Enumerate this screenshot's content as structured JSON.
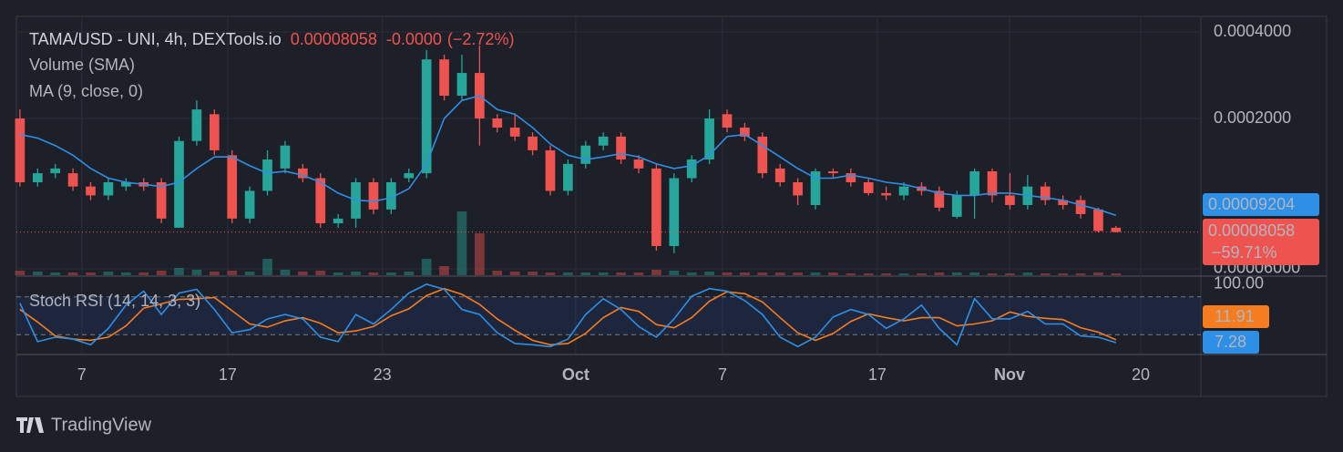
{
  "chart_data": {
    "type": "candlestick",
    "title": "TAMA/USD - UNI, 4h, DEXTools.io",
    "price_text": "0.00008058",
    "change_text": "-0.0000",
    "change_pct_text": "(−2.72%)",
    "indicators": [
      "Volume (SMA)",
      "MA (9, close, 0)"
    ],
    "log_scale": true,
    "grid": true,
    "up_color": "#26a69a",
    "down_color": "#ef5350",
    "ma_color": "#2e8fe6",
    "xlim": [
      -0.2,
      66.8
    ],
    "xticks": [
      {
        "value": 3.5,
        "label": "7"
      },
      {
        "value": 11.75,
        "label": "17"
      },
      {
        "value": 20.5,
        "label": "23"
      },
      {
        "value": 31.44,
        "label": "Oct"
      },
      {
        "value": 39.74,
        "label": "7"
      },
      {
        "value": 48.5,
        "label": "17"
      },
      {
        "value": 55.98,
        "label": "Nov"
      },
      {
        "value": 63.4,
        "label": "20"
      }
    ],
    "ylim": [
      5.7e-05,
      0.000453
    ],
    "yticks": [
      {
        "value": 0.0004,
        "label": "0.0004000"
      },
      {
        "value": 0.0002,
        "label": "0.0002000"
      },
      {
        "value": 6e-05,
        "label": "0.00006000"
      }
    ],
    "open": [
      0.0002,
      0.00012,
      0.000129,
      0.000129,
      0.000116,
      0.000108,
      0.000116,
      0.00012,
      0.00012,
      8.34e-05,
      0.000167,
      0.000207,
      0.000149,
      8.97e-05,
      0.000112,
      0.000134,
      0.000134,
      0.000124,
      8.64e-05,
      8.97e-05,
      0.00012,
      9.65e-05,
      0.000124,
      0.000129,
      0.000321,
      0.00024,
      0.000288,
      0.0002,
      0.000186,
      0.000173,
      0.000155,
      0.000112,
      0.000139,
      0.000161,
      0.000173,
      0.000144,
      0.000134,
      7.2e-05,
      0.000124,
      0.000144,
      0.000207,
      0.000186,
      0.000173,
      0.000134,
      0.00012,
      0.0001,
      0.000131,
      0.000129,
      0.00012,
      0.00011,
      0.000108,
      0.000116,
      0.000112,
      9.1e-05,
      0.000108,
      0.000131,
      0.000108,
      0.0001,
      0.000116,
      0.000104,
      0.000104,
      9.65e-05,
      8.34e-05
    ],
    "high": [
      0.000215,
      0.000134,
      0.000139,
      0.000134,
      0.00012,
      0.000124,
      0.000124,
      0.000124,
      0.000124,
      0.000173,
      0.000231,
      0.000215,
      0.000155,
      0.000116,
      0.000155,
      0.000167,
      0.000139,
      0.000129,
      9.3e-05,
      0.000124,
      0.000124,
      0.000124,
      0.000134,
      0.000346,
      0.000333,
      0.000333,
      0.000359,
      0.000207,
      0.000207,
      0.000179,
      0.000161,
      0.000144,
      0.000167,
      0.000179,
      0.000179,
      0.000149,
      0.000139,
      0.000129,
      0.000149,
      0.000215,
      0.000215,
      0.000193,
      0.000179,
      0.000139,
      0.000124,
      0.000134,
      0.000134,
      0.000134,
      0.000124,
      0.000116,
      0.00012,
      0.00012,
      0.000116,
      0.000112,
      0.000134,
      0.000134,
      0.000129,
      0.000127,
      0.00012,
      0.000108,
      0.000108,
      9.79e-05,
      8.46e-05
    ],
    "low": [
      0.000116,
      0.000116,
      0.000124,
      0.000112,
      0.000104,
      0.000104,
      0.000112,
      0.000112,
      8.64e-05,
      8.34e-05,
      0.000161,
      0.000149,
      8.64e-05,
      8.64e-05,
      0.000108,
      0.000129,
      0.00012,
      8.34e-05,
      8.34e-05,
      8.34e-05,
      9.3e-05,
      9.3e-05,
      0.00012,
      0.000124,
      0.000231,
      0.000231,
      0.000161,
      0.000179,
      0.000167,
      0.000149,
      0.000108,
      0.000108,
      0.000134,
      0.000155,
      0.000139,
      0.000129,
      6.94e-05,
      6.8e-05,
      0.00012,
      0.000139,
      0.000179,
      0.000167,
      0.000124,
      0.000116,
      0.0001,
      9.65e-05,
      0.000124,
      0.000116,
      0.000108,
      0.000104,
      0.000104,
      0.000108,
      9.51e-05,
      8.97e-05,
      8.97e-05,
      0.000102,
      9.65e-05,
      9.65e-05,
      0.0001,
      9.65e-05,
      8.97e-05,
      8.03e-05,
      8.03e-05
    ],
    "close": [
      0.00012,
      0.000129,
      0.000134,
      0.000116,
      0.000108,
      0.00012,
      0.00012,
      0.000116,
      8.97e-05,
      0.000167,
      0.000215,
      0.000155,
      8.97e-05,
      0.000112,
      0.000144,
      0.000161,
      0.000124,
      8.64e-05,
      8.97e-05,
      0.00012,
      9.65e-05,
      0.00012,
      0.000129,
      0.000321,
      0.00024,
      0.000288,
      0.0002,
      0.000186,
      0.000173,
      0.000155,
      0.000112,
      0.000139,
      0.000161,
      0.000173,
      0.000144,
      0.000134,
      7.2e-05,
      0.000124,
      0.000144,
      0.0002,
      0.000186,
      0.000173,
      0.000129,
      0.00012,
      0.000108,
      0.000131,
      0.000129,
      0.00012,
      0.00011,
      0.000108,
      0.000116,
      0.000112,
      9.79e-05,
      0.000108,
      0.000131,
      0.000108,
      0.0001,
      0.000116,
      0.000104,
      0.0001,
      9.3e-05,
      8.12e-05,
      8.058e-05
    ],
    "volume": [
      5,
      4,
      3,
      3,
      3,
      4,
      3,
      3,
      5,
      8,
      6,
      4,
      5,
      4,
      18,
      6,
      4,
      5,
      3,
      4,
      3,
      3,
      4,
      18,
      10,
      70,
      46,
      5,
      4,
      4,
      3,
      3,
      3,
      3,
      3,
      3,
      6,
      5,
      3,
      4,
      3,
      3,
      3,
      3,
      3,
      3,
      3,
      2,
      2,
      2,
      2,
      2,
      3,
      3,
      3,
      2,
      2,
      3,
      2,
      2,
      2,
      3,
      2
    ],
    "ma": [
      0.000176,
      0.000171,
      0.000161,
      0.000149,
      0.000134,
      0.000124,
      0.00012,
      0.000118,
      0.000116,
      0.00012,
      0.000134,
      0.000147,
      0.000147,
      0.000137,
      0.000129,
      0.000131,
      0.000127,
      0.00012,
      0.00011,
      0.000104,
      0.000103,
      0.000106,
      0.000114,
      0.000139,
      0.0002,
      0.000231,
      0.00024,
      0.000215,
      0.000207,
      0.000186,
      0.000163,
      0.000149,
      0.000144,
      0.000147,
      0.000151,
      0.000147,
      0.000139,
      0.000134,
      0.000137,
      0.000149,
      0.000173,
      0.000176,
      0.000161,
      0.000147,
      0.000134,
      0.000124,
      0.000124,
      0.000127,
      0.000124,
      0.00012,
      0.000118,
      0.000114,
      0.00011,
      0.000108,
      0.000108,
      0.00011,
      0.00011,
      0.000108,
      0.000106,
      0.000104,
      0.0001,
      9.65e-05,
      9.204e-05
    ],
    "ma_label": {
      "value": 9.204e-05,
      "label": "0.00009204"
    },
    "last_label": {
      "value": 8.058e-05,
      "label": "0.00008058"
    },
    "last_change_label": "−59.71%",
    "stoch": {
      "title": "Stoch RSI (14, 14, 3, 3)",
      "ylim": [
        -10,
        110
      ],
      "yticks": [
        {
          "value": 100,
          "label": "100.00"
        }
      ],
      "levels": [
        20,
        80
      ],
      "k_color": "#2e8fe6",
      "d_color": "#f57c1f",
      "k": [
        70,
        9,
        16,
        13,
        4,
        30,
        67,
        89,
        52,
        86,
        92,
        60,
        23,
        28,
        45,
        52,
        45,
        16,
        9,
        52,
        37,
        60,
        86,
        100,
        92,
        60,
        52,
        23,
        6,
        4,
        1,
        13,
        52,
        77,
        60,
        33,
        16,
        45,
        81,
        93,
        89,
        74,
        52,
        16,
        1,
        16,
        48,
        60,
        52,
        30,
        45,
        67,
        30,
        4,
        77,
        45,
        45,
        57,
        37,
        37,
        18,
        16,
        7.28
      ],
      "d": [
        60,
        40,
        18,
        13,
        11,
        16,
        34,
        62,
        69,
        76,
        77,
        79,
        58,
        37,
        32,
        42,
        47,
        38,
        23,
        26,
        33,
        50,
        61,
        82,
        93,
        84,
        68,
        45,
        27,
        11,
        4,
        6,
        22,
        47,
        63,
        57,
        36,
        31,
        47,
        73,
        88,
        85,
        72,
        47,
        23,
        11,
        22,
        41,
        53,
        47,
        42,
        47,
        47,
        34,
        37,
        42,
        56,
        49,
        46,
        44,
        31,
        24,
        11.91
      ]
    },
    "brand": "TradingView"
  }
}
